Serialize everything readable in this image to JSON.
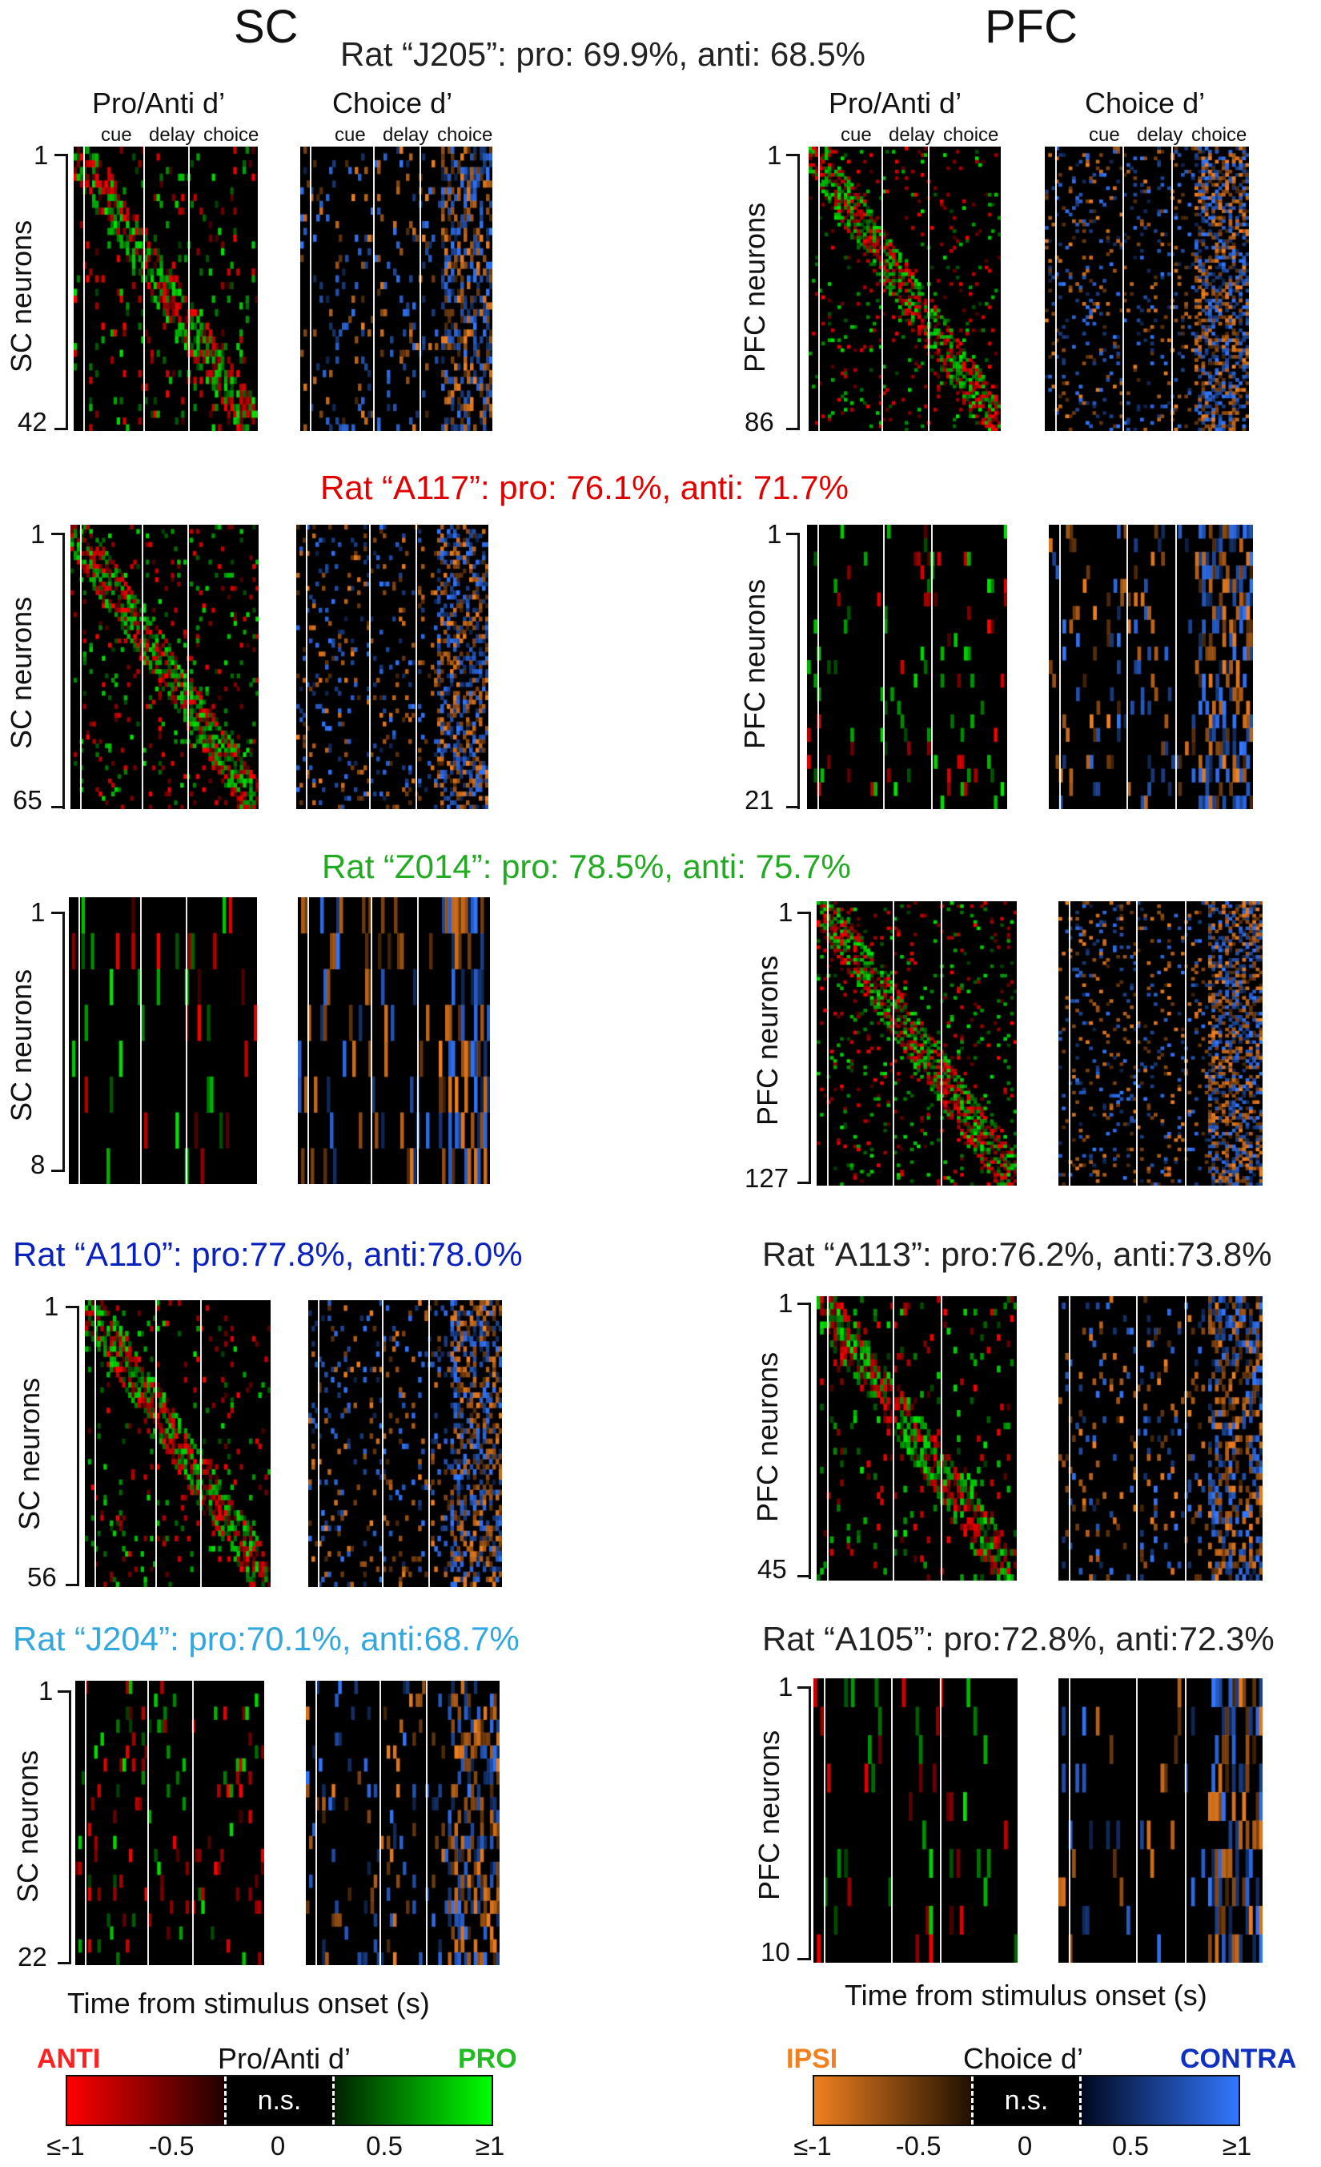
{
  "regions": {
    "sc": "SC",
    "pfc": "PFC"
  },
  "headers": {
    "proanti": "Pro/Anti d’",
    "choice": "Choice d’"
  },
  "epochs": {
    "cue": "cue",
    "delay": "delay",
    "choice": "choice"
  },
  "colors": {
    "anti": "#ff0000",
    "pro": "#00ff00",
    "ipsi": "#f08020",
    "contra": "#3377ff",
    "rat_J205": "#222222",
    "rat_A117": "#e00000",
    "rat_Z014": "#22aa22",
    "rat_A110": "#0a22bb",
    "rat_J204": "#33a8e0",
    "rat_A113": "#222222",
    "rat_A105": "#222222"
  },
  "rats": {
    "J205": "Rat “J205”: pro: 69.9%,  anti: 68.5%",
    "A117": "Rat “A117”: pro: 76.1%,  anti: 71.7%",
    "Z014": "Rat “Z014”: pro: 78.5%,  anti: 75.7%",
    "A110": "Rat “A110”: pro:77.8%, anti:78.0%",
    "A113": "Rat “A113”: pro:76.2%, anti:73.8%",
    "J204": "Rat “J204”: pro:70.1%, anti:68.7%",
    "A105": "Rat “A105”: pro:72.8%, anti:72.3%"
  },
  "axes": {
    "sc_neurons": "SC neurons",
    "pfc_neurons": "PFC neurons",
    "time": "Time from stimulus onset (s)"
  },
  "neuron_counts": {
    "start": "1",
    "J205_sc": 42,
    "J205_pfc": 86,
    "A117_sc": 65,
    "A117_pfc": 21,
    "Z014_sc": 8,
    "Z014_pfc": 127,
    "A110_sc": 56,
    "A113_pfc": 45,
    "J204_sc": 22,
    "A105_pfc": 10
  },
  "colorbars": {
    "proanti": {
      "left": "ANTI",
      "title": "Pro/Anti d’",
      "right": "PRO",
      "ns": "n.s.",
      "ticks": [
        "≤-1",
        "-0.5",
        "0",
        "0.5",
        "≥1"
      ]
    },
    "choice": {
      "left": "IPSI",
      "title": "Choice d’",
      "right": "CONTRA",
      "ns": "n.s.",
      "ticks": [
        "≤-1",
        "-0.5",
        "0",
        "0.5",
        "≥1"
      ]
    }
  }
}
